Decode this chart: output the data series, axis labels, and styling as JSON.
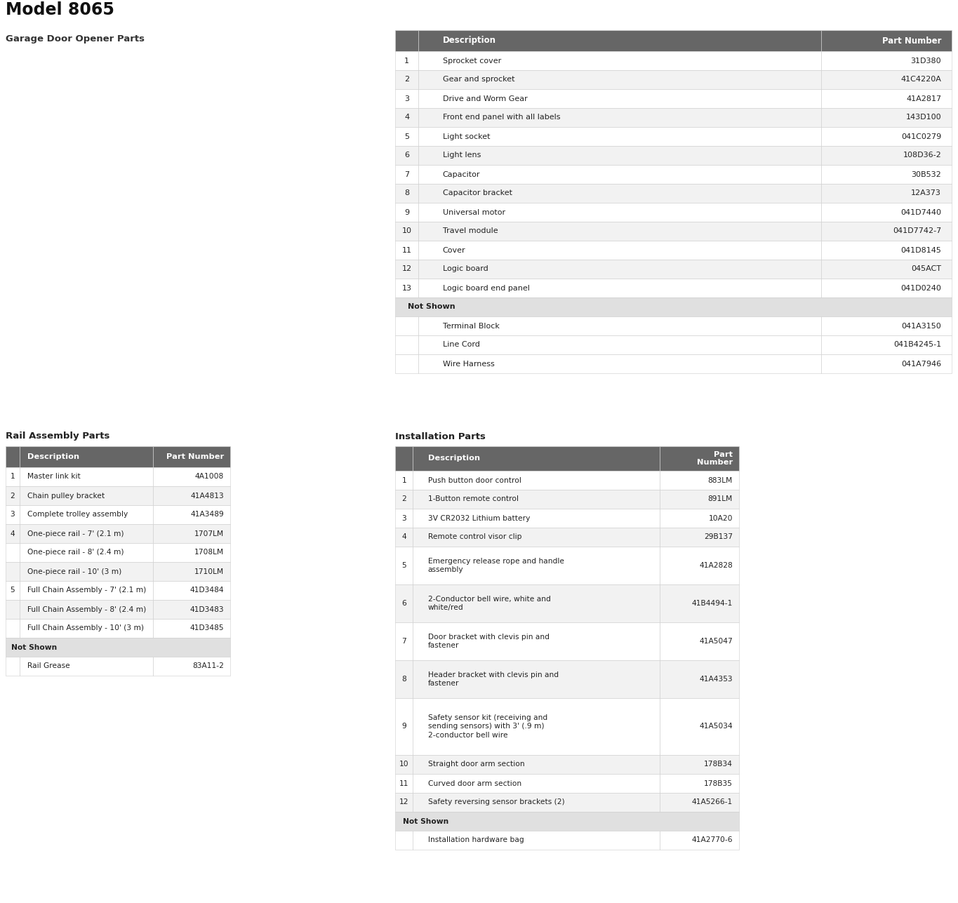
{
  "title": "Model 8065",
  "subtitle": "Garage Door Opener Parts",
  "bg_color": "#ffffff",
  "header_color": "#666666",
  "header_text_color": "#ffffff",
  "row_color_even": "#ffffff",
  "row_color_odd": "#f2f2f2",
  "not_shown_bg": "#e0e0e0",
  "border_color": "#cccccc",
  "text_color": "#222222",
  "table1_headers": [
    "",
    "Description",
    "Part Number"
  ],
  "table1_rows": [
    [
      "1",
      "Sprocket cover",
      "31D380"
    ],
    [
      "2",
      "Gear and sprocket",
      "41C4220A"
    ],
    [
      "3",
      "Drive and Worm Gear",
      "41A2817"
    ],
    [
      "4",
      "Front end panel with all labels",
      "143D100"
    ],
    [
      "5",
      "Light socket",
      "041C0279"
    ],
    [
      "6",
      "Light lens",
      "108D36-2"
    ],
    [
      "7",
      "Capacitor",
      "30B532"
    ],
    [
      "8",
      "Capacitor bracket",
      "12A373"
    ],
    [
      "9",
      "Universal motor",
      "041D7440"
    ],
    [
      "10",
      "Travel module",
      "041D7742-7"
    ],
    [
      "11",
      "Cover",
      "041D8145"
    ],
    [
      "12",
      "Logic board",
      "045ACT"
    ],
    [
      "13",
      "Logic board end panel",
      "041D0240"
    ]
  ],
  "table1_not_shown": [
    [
      "",
      "Terminal Block",
      "041A3150"
    ],
    [
      "",
      "Line Cord",
      "041B4245-1"
    ],
    [
      "",
      "Wire Harness",
      "041A7946"
    ]
  ],
  "rail_title": "Rail Assembly Parts",
  "rail_headers": [
    "",
    "Description",
    "Part Number"
  ],
  "rail_rows": [
    [
      "1",
      "Master link kit",
      "4A1008"
    ],
    [
      "2",
      "Chain pulley bracket",
      "41A4813"
    ],
    [
      "3",
      "Complete trolley assembly",
      "41A3489"
    ],
    [
      "4",
      "One-piece rail - 7' (2.1 m)",
      "1707LM"
    ],
    [
      "",
      "One-piece rail - 8' (2.4 m)",
      "1708LM"
    ],
    [
      "",
      "One-piece rail - 10' (3 m)",
      "1710LM"
    ],
    [
      "5",
      "Full Chain Assembly - 7' (2.1 m)",
      "41D3484"
    ],
    [
      "",
      "Full Chain Assembly - 8' (2.4 m)",
      "41D3483"
    ],
    [
      "",
      "Full Chain Assembly - 10' (3 m)",
      "41D3485"
    ]
  ],
  "rail_not_shown": [
    [
      "",
      "Rail Grease",
      "83A11-2"
    ]
  ],
  "install_title": "Installation Parts",
  "install_headers": [
    "",
    "Description",
    "Part\nNumber"
  ],
  "install_rows": [
    [
      "1",
      "Push button door control",
      "883LM"
    ],
    [
      "2",
      "1-Button remote control",
      "891LM"
    ],
    [
      "3",
      "3V CR2032 Lithium battery",
      "10A20"
    ],
    [
      "4",
      "Remote control visor clip",
      "29B137"
    ],
    [
      "5",
      "Emergency release rope and handle\nassembly",
      "41A2828"
    ],
    [
      "6",
      "2-Conductor bell wire, white and\nwhite/red",
      "41B4494-1"
    ],
    [
      "7",
      "Door bracket with clevis pin and\nfastener",
      "41A5047"
    ],
    [
      "8",
      "Header bracket with clevis pin and\nfastener",
      "41A4353"
    ],
    [
      "9",
      "Safety sensor kit (receiving and\nsending sensors) with 3' (.9 m)\n2-conductor bell wire",
      "41A5034"
    ],
    [
      "10",
      "Straight door arm section",
      "178B34"
    ],
    [
      "11",
      "Curved door arm section",
      "178B35"
    ],
    [
      "12",
      "Safety reversing sensor brackets (2)",
      "41A5266-1"
    ]
  ],
  "install_not_shown": [
    [
      "",
      "Installation hardware bag",
      "41A2770-6"
    ]
  ]
}
